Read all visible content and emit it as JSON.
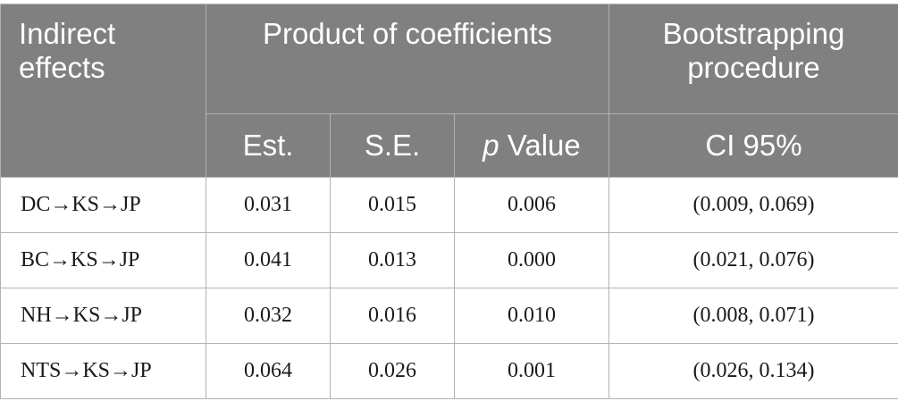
{
  "table": {
    "headers": {
      "indirect_effects_line1": "Indirect",
      "indirect_effects_line2": "effects",
      "product_of_coefficients": "Product of coefficients",
      "bootstrapping_line1": "Bootstrapping",
      "bootstrapping_line2": "procedure",
      "est": "Est.",
      "se": "S.E.",
      "p_value_italic": "p",
      "p_value_rest": " Value",
      "ci": "CI 95%"
    },
    "rows": [
      {
        "effect": "DC→KS→JP",
        "est": "0.031",
        "se": "0.015",
        "p": "0.006",
        "ci": "(0.009, 0.069)"
      },
      {
        "effect": "BC→KS→JP",
        "est": "0.041",
        "se": "0.013",
        "p": "0.000",
        "ci": "(0.021, 0.076)"
      },
      {
        "effect": "NH→KS→JP",
        "est": "0.032",
        "se": "0.016",
        "p": "0.010",
        "ci": "(0.008, 0.071)"
      },
      {
        "effect": "NTS→KS→JP",
        "est": "0.064",
        "se": "0.026",
        "p": "0.001",
        "ci": "(0.026, 0.134)"
      }
    ]
  }
}
